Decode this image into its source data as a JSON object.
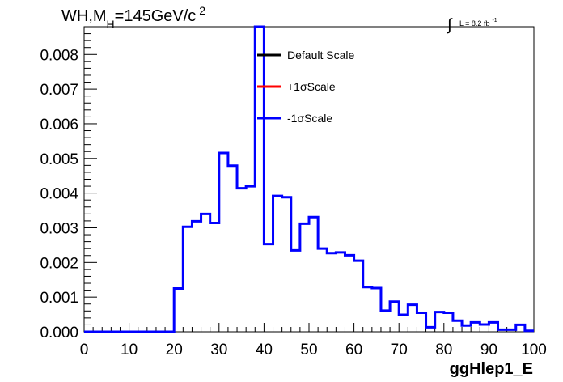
{
  "chart_data": {
    "type": "histogram",
    "title_main": "WH,M",
    "title_sub": "H",
    "title_rest": "=145GeV/c",
    "title_sup": "2",
    "lumi_symbol": "∫",
    "lumi_text": "L = 8.2 fb",
    "lumi_sup": "-1",
    "xlabel": "ggHlep1_E",
    "ylabel": "",
    "xlim": [
      0,
      100
    ],
    "ylim": [
      0,
      0.0088
    ],
    "x_ticks": [
      0,
      10,
      20,
      30,
      40,
      50,
      60,
      70,
      80,
      90,
      100
    ],
    "x_tick_labels": [
      "0",
      "10",
      "20",
      "30",
      "40",
      "50",
      "60",
      "70",
      "80",
      "90",
      "100"
    ],
    "y_ticks": [
      0,
      0.001,
      0.002,
      0.003,
      0.004,
      0.005,
      0.006,
      0.007,
      0.008
    ],
    "y_tick_labels": [
      "0.000",
      "0.001",
      "0.002",
      "0.003",
      "0.004",
      "0.005",
      "0.006",
      "0.007",
      "0.008"
    ],
    "bin_width": 2,
    "bin_edges_start": 0,
    "legend": [
      {
        "label": "Default Scale",
        "color": "#000000"
      },
      {
        "label": "+1σScale",
        "color": "#ff0000"
      },
      {
        "label": "-1σScale",
        "color": "#0000ff"
      }
    ],
    "series": [
      {
        "name": "-1σScale",
        "color": "#0000ff",
        "values": [
          0,
          0,
          0,
          0,
          0,
          0,
          0,
          0,
          0,
          0,
          0.00125,
          0.00303,
          0.00319,
          0.0034,
          0.00314,
          0.00516,
          0.00479,
          0.00414,
          0.0042,
          0.0088,
          0.00253,
          0.00392,
          0.00388,
          0.00235,
          0.00312,
          0.00331,
          0.0024,
          0.00227,
          0.00229,
          0.00221,
          0.00205,
          0.00129,
          0.00126,
          0.00061,
          0.00087,
          0.00049,
          0.00078,
          0.00055,
          0.00013,
          0.00057,
          0.00055,
          0.00032,
          0.00018,
          0.00027,
          0.00021,
          0.00027,
          6e-05,
          6e-05,
          0.0002,
          3e-05
        ]
      }
    ]
  }
}
